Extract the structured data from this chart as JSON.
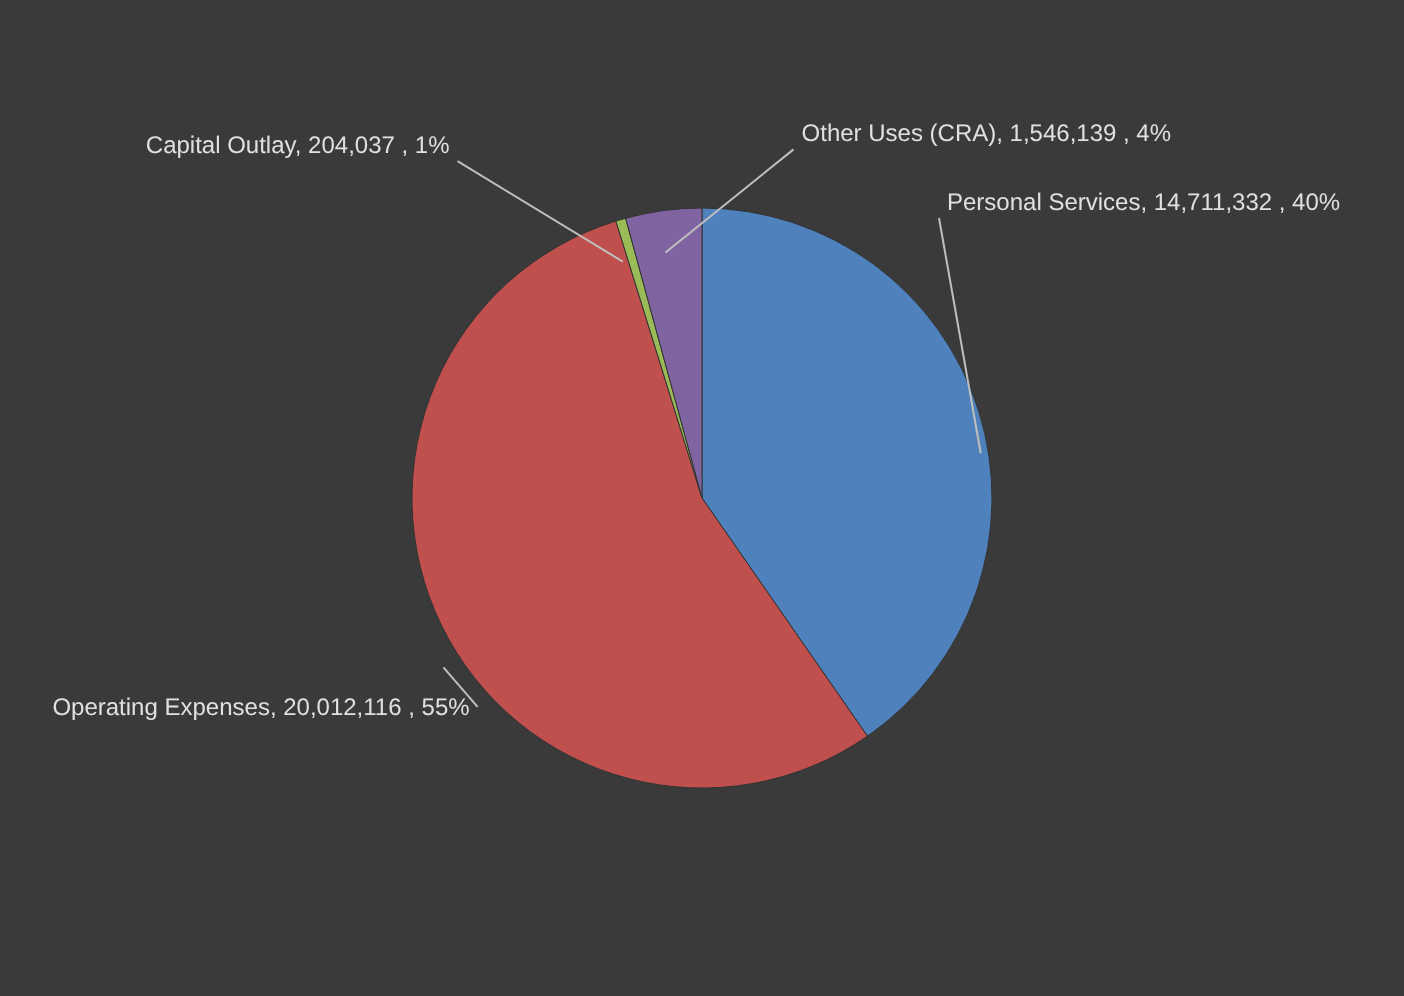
{
  "chart_data": {
    "type": "pie",
    "categories": [
      "Personal Services",
      "Operating Expenses",
      "Capital Outlay",
      "Other Uses (CRA)"
    ],
    "values": [
      14711332,
      20012116,
      204037,
      1546139
    ],
    "colors": [
      "#4f81bd",
      "#c0504d",
      "#9bbb59",
      "#8064a2"
    ],
    "value_labels": [
      "14,711,332 , 40%",
      "20,012,116 , 55%",
      "204,037 , 1%",
      "1,546,139 , 4%"
    ]
  }
}
